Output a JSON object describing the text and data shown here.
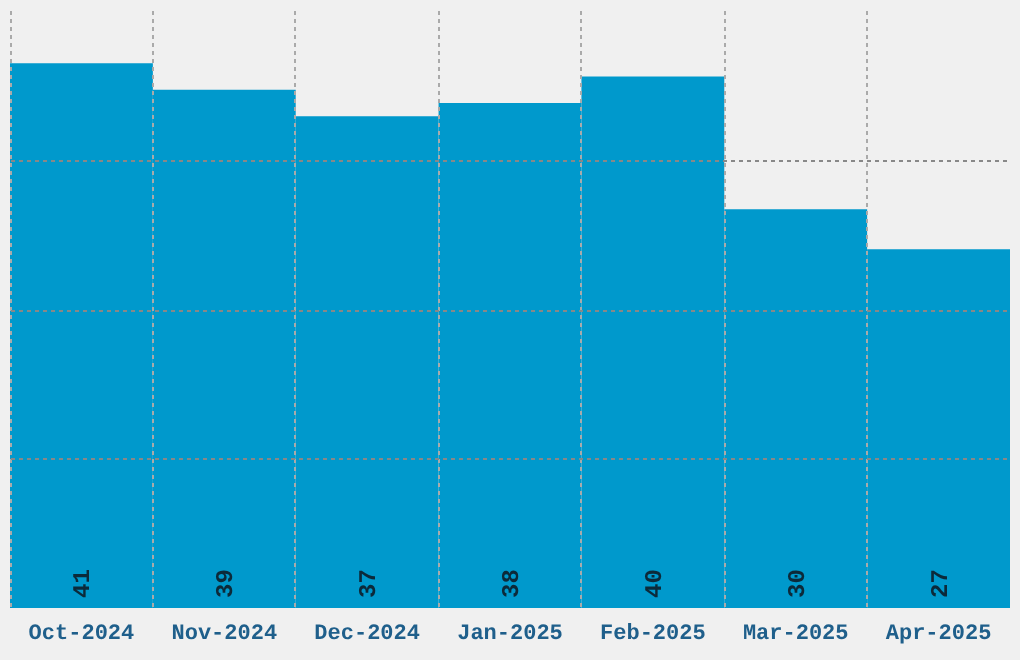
{
  "chart_data": {
    "type": "bar",
    "categories": [
      "Oct-2024",
      "Nov-2024",
      "Dec-2024",
      "Jan-2025",
      "Feb-2025",
      "Mar-2025",
      "Apr-2025"
    ],
    "values": [
      41,
      39,
      37,
      38,
      40,
      30,
      27
    ],
    "color": "#0099cc",
    "ylim": [
      0,
      45
    ],
    "yticks": [
      {
        "value": 11.25,
        "label": null
      },
      {
        "value": 22.5,
        "label": null
      },
      {
        "value": 33.75,
        "label": null
      }
    ],
    "tick_labels": "x",
    "grid": true,
    "data_labels": true
  }
}
